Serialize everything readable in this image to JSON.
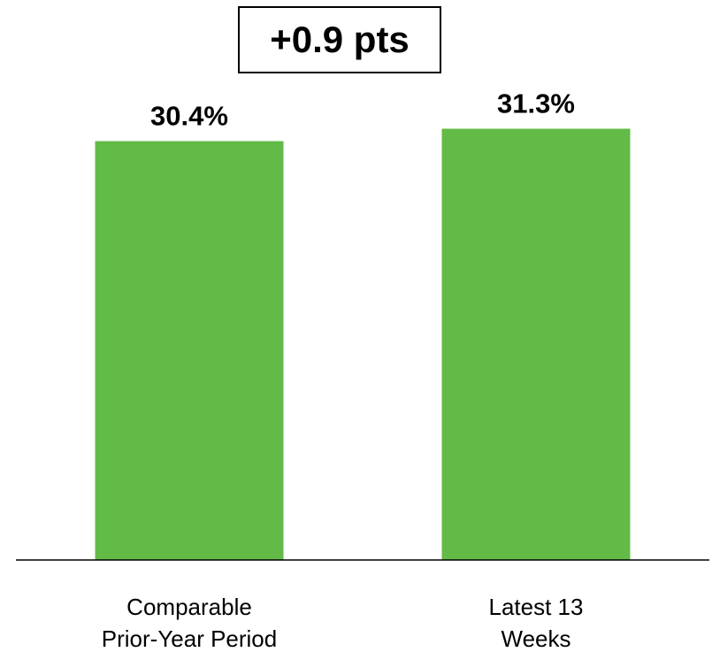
{
  "callout": {
    "text": "+0.9 pts"
  },
  "colors": {
    "bar": "#63bb47",
    "axis": "#000000"
  },
  "chart_data": {
    "type": "bar",
    "categories": [
      [
        "Comparable",
        "Prior-Year Period"
      ],
      [
        "Latest 13",
        "Weeks"
      ]
    ],
    "values": [
      30.4,
      31.3
    ],
    "data_labels": [
      "30.4%",
      "31.3%"
    ],
    "ylim": [
      0,
      40
    ],
    "grid": false,
    "legend": "none"
  }
}
